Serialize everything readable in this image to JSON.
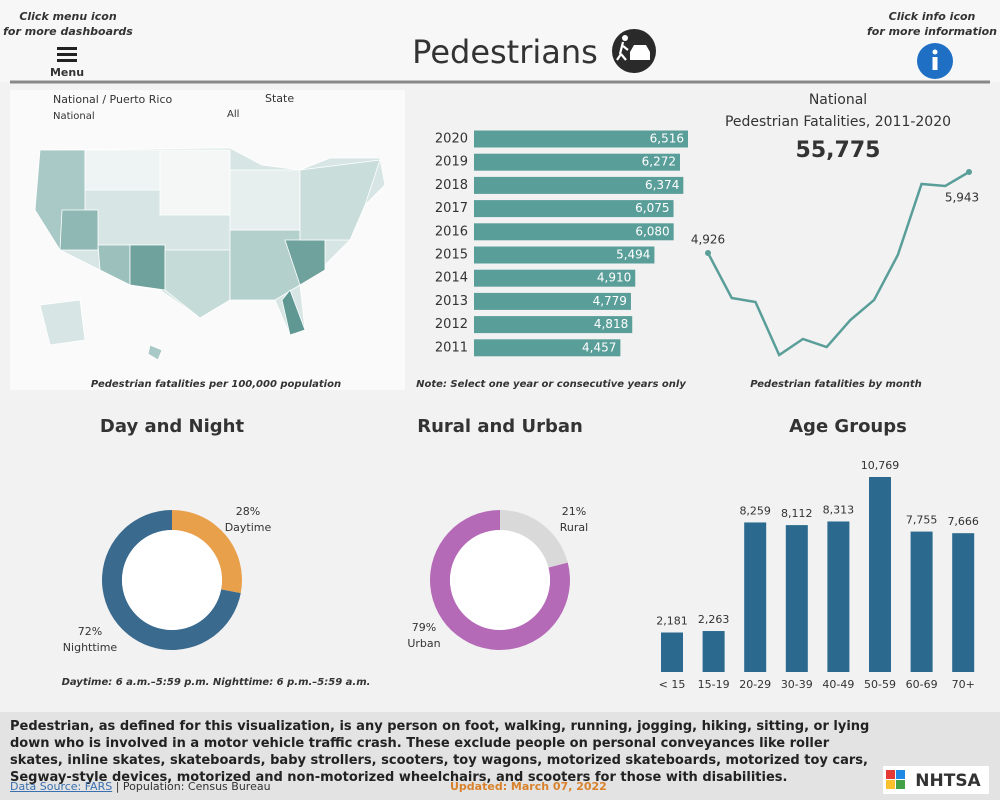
{
  "header": {
    "menu_hint": [
      "Click menu icon",
      "for more dashboards"
    ],
    "menu_label": "Menu",
    "title": "Pedestrians",
    "info_hint": [
      "Click info icon",
      "for more information"
    ]
  },
  "filters": {
    "region_label": "National / Puerto Rico",
    "region_value": "National",
    "state_label": "State",
    "state_value": "All"
  },
  "map": {
    "caption": "Pedestrian fatalities per 100,000 population"
  },
  "total": {
    "title_lines": [
      "National",
      "Pedestrian Fatalities,  2011-2020"
    ],
    "value": "55,775"
  },
  "chart_data": [
    {
      "type": "barh",
      "categories": [
        "2020",
        "2019",
        "2018",
        "2017",
        "2016",
        "2015",
        "2014",
        "2013",
        "2012",
        "2011"
      ],
      "values": [
        6516,
        6272,
        6374,
        6075,
        6080,
        5494,
        4910,
        4779,
        4818,
        4457
      ],
      "value_labels": [
        "6,516",
        "6,272",
        "6,374",
        "6,075",
        "6,080",
        "5,494",
        "4,910",
        "4,779",
        "4,818",
        "4,457"
      ],
      "color": "#5a9e9a",
      "caption": "Note: Select one year or consecutive years only"
    },
    {
      "type": "line",
      "categories": [
        null,
        null,
        null,
        null,
        null,
        null,
        null,
        null,
        null,
        null,
        null,
        null
      ],
      "values": [
        4926,
        4361,
        4311,
        3645,
        3846,
        3745,
        4084,
        4336,
        4901,
        5793,
        5768,
        5943
      ],
      "value_labels": [
        "4,926",
        null,
        null,
        null,
        null,
        null,
        null,
        null,
        null,
        null,
        null,
        "5,943"
      ],
      "color": "#5a9e9a",
      "caption": "Pedestrian fatalities by month"
    },
    {
      "type": "donut",
      "title": "Day and Night",
      "categories": [
        "Daytime",
        "Nighttime"
      ],
      "values": [
        28,
        72
      ],
      "value_labels": [
        "28%",
        "72%"
      ],
      "colors": [
        "#e9a04b",
        "#3b6a8f"
      ],
      "caption": "Daytime: 6 a.m.–5:59 p.m. Nighttime: 6 p.m.–5:59 a.m."
    },
    {
      "type": "donut",
      "title": "Rural and Urban",
      "categories": [
        "Rural",
        "Urban"
      ],
      "values": [
        21,
        79
      ],
      "value_labels": [
        "21%",
        "79%"
      ],
      "colors": [
        "#d9d9d9",
        "#b56ab8"
      ]
    },
    {
      "type": "bar",
      "title": "Age Groups",
      "categories": [
        "< 15",
        "15-19",
        "20-29",
        "30-39",
        "40-49",
        "50-59",
        "60-69",
        "70+"
      ],
      "values": [
        2181,
        2263,
        8259,
        8112,
        8313,
        10769,
        7755,
        7666
      ],
      "value_labels": [
        "2,181",
        "2,263",
        "8,259",
        "8,112",
        "8,313",
        "10,769",
        "7,755",
        "7,666"
      ],
      "color": "#2b6a8e"
    }
  ],
  "footer": {
    "definition": "Pedestrian, as defined for this visualization, is any person on foot, walking, running, jogging, hiking, sitting, or lying down who is involved in a motor vehicle traffic crash. These exclude people on personal conveyances like roller skates, inline skates, skateboards, baby strollers, scooters, toy wagons, motorized skateboards, motorized toy cars, Segway-style devices, motorized and non-motorized wheelchairs, and scooters for those with disabilities.",
    "source_link": "Data Source: FARS",
    "population": "| Population: Census Bureau",
    "updated": "Updated: March 07, 2022",
    "logo": "NHTSA"
  }
}
